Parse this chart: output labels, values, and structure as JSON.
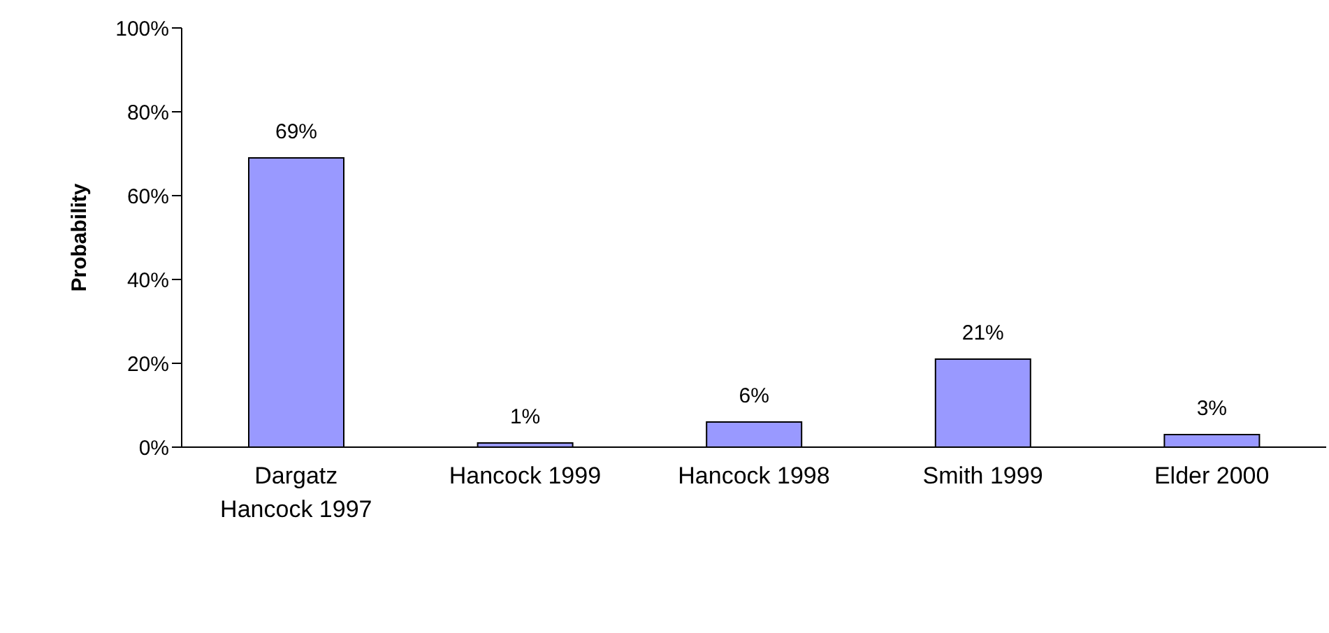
{
  "chart_data": {
    "type": "bar",
    "ylabel": "Probability",
    "categories": [
      "Dargatz Hancock 1997",
      "Hancock 1999",
      "Hancock 1998",
      "Smith 1999",
      "Elder 2000"
    ],
    "values": [
      69,
      1,
      6,
      21,
      3
    ],
    "value_labels": [
      "69%",
      "1%",
      "6%",
      "21%",
      "3%"
    ],
    "color": "#9999ff",
    "ylim": [
      0,
      100
    ],
    "yticks": [
      {
        "value": 0,
        "label": "0%"
      },
      {
        "value": 20,
        "label": "20%"
      },
      {
        "value": 40,
        "label": "40%"
      },
      {
        "value": 60,
        "label": "60%"
      },
      {
        "value": 80,
        "label": "80%"
      },
      {
        "value": 100,
        "label": "100%"
      }
    ],
    "grid": false
  }
}
